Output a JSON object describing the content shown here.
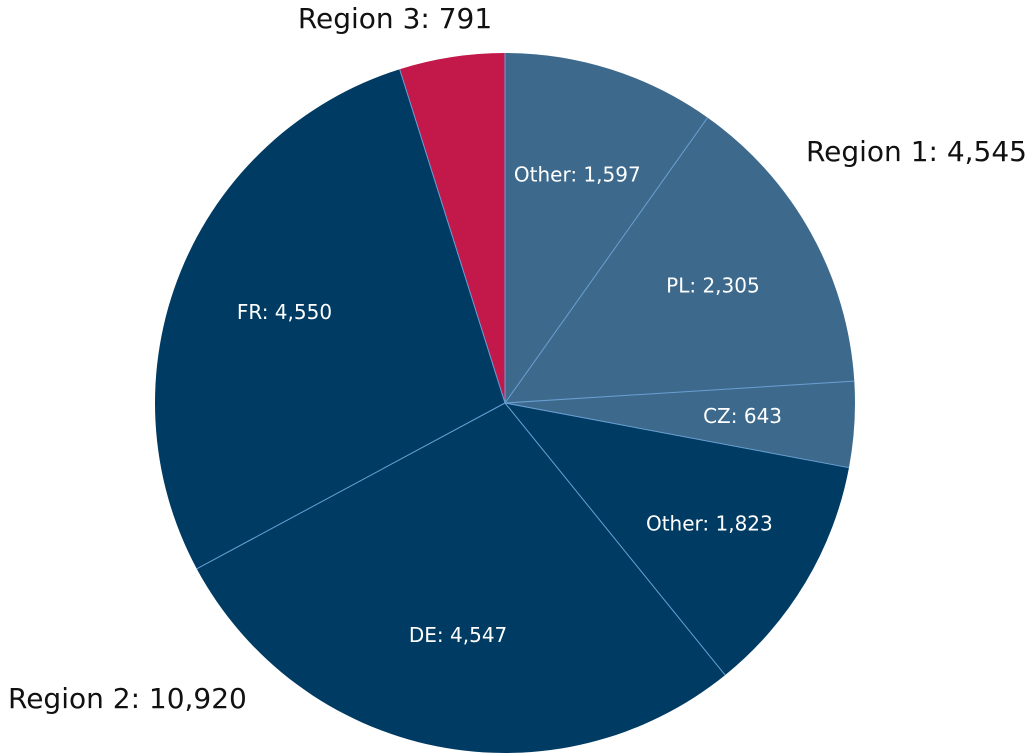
{
  "chart_data": {
    "type": "pie",
    "groups": [
      {
        "label": "Region 1: 4,545",
        "value": 4545,
        "color": "#3d6a8c",
        "slices": [
          {
            "label": "Other: 1,597",
            "value": 1597
          },
          {
            "label": "PL: 2,305",
            "value": 2305
          },
          {
            "label": "CZ: 643",
            "value": 643
          }
        ]
      },
      {
        "label": "Region 2: 10,920",
        "value": 10920,
        "color": "#003b63",
        "slices": [
          {
            "label": "Other: 1,823",
            "value": 1823
          },
          {
            "label": "DE: 4,547",
            "value": 4547
          },
          {
            "label": "FR: 4,550",
            "value": 4550
          }
        ]
      },
      {
        "label": "Region 3: 791",
        "value": 791,
        "color": "#c2184a",
        "slices": []
      }
    ]
  }
}
